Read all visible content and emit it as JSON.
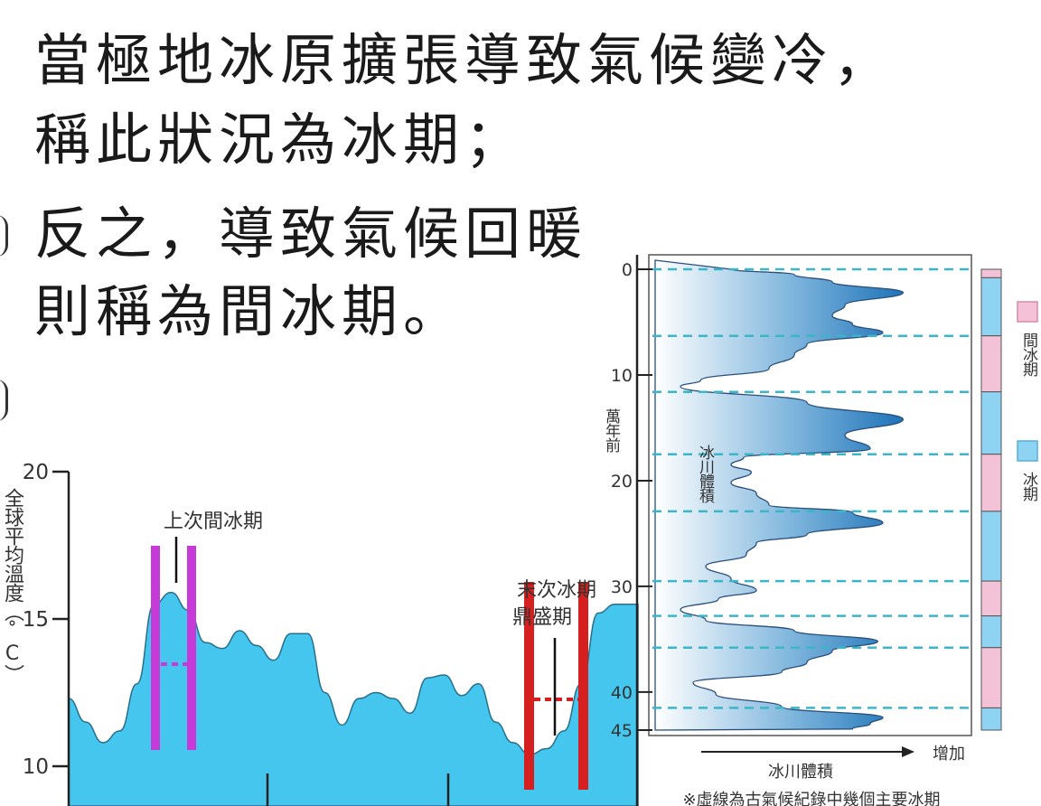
{
  "headline": {
    "line1": "當極地冰原擴張導致氣候變冷，",
    "line2": "稱此狀況為冰期；",
    "line3": "反之，導致氣候回暖",
    "line4": "則稱為間冰期。"
  },
  "chart_data": [
    {
      "type": "area",
      "title": "",
      "ylabel": "全球平均溫度（˚C）",
      "ylim": [
        10,
        20
      ],
      "y_ticks": [
        "20",
        "15",
        "10"
      ],
      "fill_color": "#45c6ee",
      "series": [
        {
          "values_description_index": "relative time, left to right",
          "x": [
            0,
            3,
            6,
            9,
            12,
            15,
            18,
            21,
            24,
            27,
            30,
            33,
            36,
            39,
            42,
            45,
            48,
            51,
            54,
            57,
            60,
            63,
            66,
            69,
            72,
            75,
            78,
            81,
            84,
            87,
            90,
            93,
            96,
            100
          ],
          "values": [
            12.3,
            11.5,
            10.8,
            11.2,
            12.8,
            15.5,
            15.9,
            15.3,
            14.2,
            14.0,
            14.6,
            14.1,
            13.6,
            14.5,
            14.5,
            12.5,
            11.4,
            12.3,
            12.5,
            12.3,
            11.8,
            13.0,
            13.1,
            12.4,
            12.8,
            11.5,
            10.8,
            10.4,
            10.6,
            11.2,
            12.8,
            15.2,
            15.5,
            15.5
          ]
        }
      ],
      "annotations": {
        "last_interglacial": "上次間冰期",
        "last_glacial_max": "末次冰期鼎盛期"
      }
    },
    {
      "type": "area",
      "title": "",
      "ylabel": "萬年前",
      "xlabel": "冰川體積",
      "x_axis_arrow_label": "增加",
      "area_label": "冰川體積",
      "ylim": [
        0,
        45
      ],
      "y_ticks": [
        "0",
        "10",
        "20",
        "30",
        "40",
        "45"
      ],
      "footnote": "※虛線為古氣候紀錄中幾個主要冰期",
      "legend": [
        {
          "label": "間冰期",
          "color": "#f4c2d6"
        },
        {
          "label": "冰期",
          "color": "#8fd3f2"
        }
      ],
      "dashed_lines_years": [
        0,
        6.3,
        11.6,
        17.5,
        22.9,
        29.5,
        32.8,
        35.8,
        41.5
      ],
      "profile": {
        "years": [
          0,
          0.5,
          1.2,
          2.2,
          3.4,
          4.4,
          5.2,
          6.0,
          7.1,
          8.1,
          9.4,
          10.5,
          11.1,
          12.6,
          14.2,
          15.7,
          17.0,
          17.8,
          18.5,
          19.2,
          20.2,
          21.2,
          22.3,
          23.0,
          24.0,
          25.1,
          25.9,
          27.0,
          28.1,
          29.3,
          30.4,
          31.2,
          32.2,
          33.2,
          34.2,
          35.2,
          36.1,
          37.2,
          38.1,
          39.1,
          40.2,
          41.4,
          42.4,
          43.0,
          43.5
        ],
        "volume_relative": [
          0.3,
          0.55,
          0.7,
          0.98,
          0.75,
          0.7,
          0.78,
          0.9,
          0.6,
          0.55,
          0.45,
          0.18,
          0.1,
          0.6,
          0.98,
          0.75,
          0.85,
          0.35,
          0.3,
          0.38,
          0.3,
          0.4,
          0.45,
          0.78,
          0.9,
          0.6,
          0.4,
          0.36,
          0.2,
          0.3,
          0.4,
          0.25,
          0.1,
          0.2,
          0.55,
          0.88,
          0.7,
          0.6,
          0.5,
          0.15,
          0.24,
          0.5,
          0.9,
          0.85,
          0.78
        ]
      },
      "bar_segments": [
        {
          "from": 0,
          "to": 0.8,
          "phase": "間冰期"
        },
        {
          "from": 0.8,
          "to": 6.3,
          "phase": "冰期"
        },
        {
          "from": 6.3,
          "to": 11.6,
          "phase": "間冰期"
        },
        {
          "from": 11.6,
          "to": 17.5,
          "phase": "冰期"
        },
        {
          "from": 17.5,
          "to": 22.9,
          "phase": "間冰期"
        },
        {
          "from": 22.9,
          "to": 29.5,
          "phase": "冰期"
        },
        {
          "from": 29.5,
          "to": 32.8,
          "phase": "間冰期"
        },
        {
          "from": 32.8,
          "to": 35.8,
          "phase": "冰期"
        },
        {
          "from": 35.8,
          "to": 41.5,
          "phase": "間冰期"
        },
        {
          "from": 41.5,
          "to": 43.6,
          "phase": "冰期"
        }
      ]
    }
  ]
}
